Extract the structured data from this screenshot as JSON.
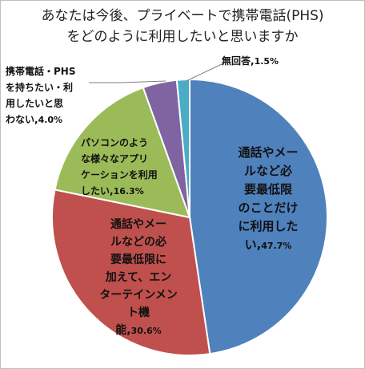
{
  "chart_data": {
    "type": "pie",
    "title": "あなたは今後、プライベートで携帯電話(PHS)\nをどのように利用したいと思いますか",
    "start_angle_deg": 0,
    "direction": "clockwise",
    "slices": [
      {
        "label": "通話やメールなど必要最低限のことだけに利用したい",
        "value": 47.7,
        "display_value": "47.7%",
        "color": "#4f81bd"
      },
      {
        "label": "通話やメールなどの必要最低限に加えて、エンターテインメント機能",
        "value": 30.6,
        "display_value": "30.6%",
        "color": "#c0504d"
      },
      {
        "label": "パソコンのような様々なアプリケーションを利用したい",
        "value": 16.3,
        "display_value": "16.3%",
        "color": "#9bbb59"
      },
      {
        "label": "携帯電話・PHSを持ちたい・利用したいと思わない",
        "value": 4.0,
        "display_value": "4.0%",
        "color": "#8064a2"
      },
      {
        "label": "無回答",
        "value": 1.5,
        "display_value": "1.5%",
        "color": "#4bacc6"
      }
    ],
    "label_lines": [
      [
        "通話やメー",
        "ルなど必",
        "要最低限",
        "のことだけ",
        "に利用した",
        "い,"
      ],
      [
        "通話やメー",
        "ルなどの必",
        "要最低限に",
        "加えて、エン",
        "ターテインメント機",
        "能,"
      ],
      [
        "パソコンのよう",
        "な様々なアプリ",
        "ケーションを利用",
        "したい,"
      ],
      [
        "携帯電話・PHS",
        "を持ちたい・利",
        "用したいと思",
        "わない,"
      ],
      [
        "無回答,"
      ]
    ]
  }
}
